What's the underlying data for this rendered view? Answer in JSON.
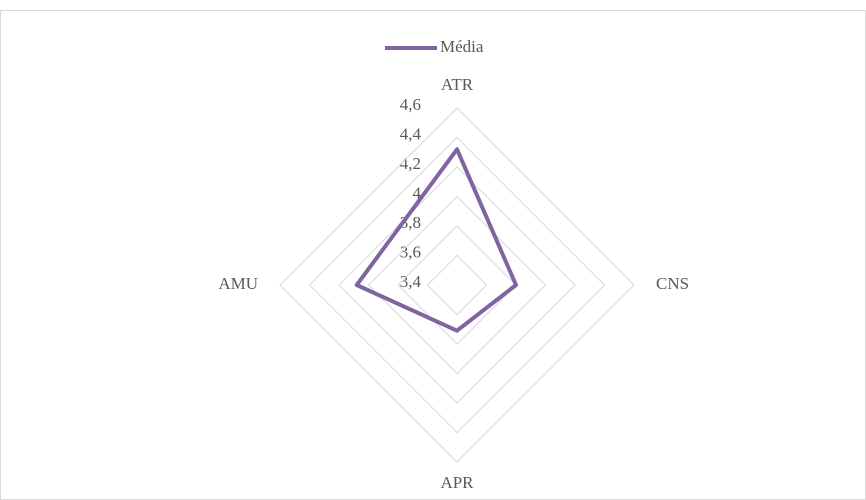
{
  "chart_data": {
    "type": "radar",
    "categories": [
      "ATR",
      "CNS",
      "APR",
      "AMU"
    ],
    "series": [
      {
        "name": "Média",
        "color": "#8064a2",
        "values": [
          4.32,
          3.8,
          3.71,
          4.08
        ]
      }
    ],
    "rlim": [
      3.4,
      4.6
    ],
    "rticks": [
      {
        "value": 3.4,
        "label": "3,4"
      },
      {
        "value": 3.6,
        "label": "3,6"
      },
      {
        "value": 3.8,
        "label": "3,8"
      },
      4,
      {
        "value": 4.2,
        "label": "4,2"
      },
      {
        "value": 4.4,
        "label": "4,4"
      },
      {
        "value": 4.6,
        "label": "4,6"
      }
    ],
    "grid": true,
    "legend": "top"
  }
}
